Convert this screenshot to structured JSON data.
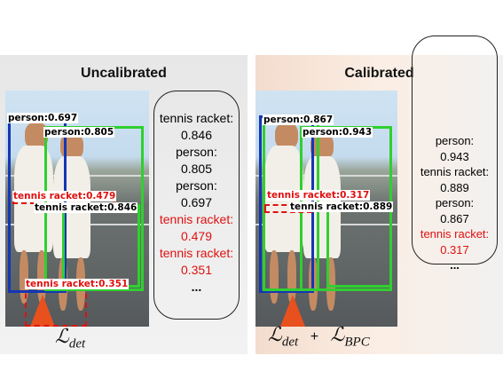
{
  "left_panel": {
    "title": "Uncalibrated",
    "detections": [
      {
        "label": "person:0.697",
        "color": "blue"
      },
      {
        "label": "person:0.805",
        "color": "green"
      },
      {
        "label": "tennis racket:0.479",
        "color": "red"
      },
      {
        "label": "tennis racket:0.846",
        "color": "green"
      },
      {
        "label": "tennis racket:0.351",
        "color": "red"
      }
    ],
    "scores": [
      "tennis racket:",
      "0.846",
      "person:",
      "0.805",
      "person:",
      "0.697",
      "tennis racket:",
      "0.479",
      "tennis racket:",
      "0.351",
      "..."
    ],
    "formula": {
      "main": "ℒ",
      "sub": "det"
    }
  },
  "right_panel": {
    "title": "Calibrated",
    "detections": [
      {
        "label": "person:0.867",
        "color": "blue"
      },
      {
        "label": "person:0.943",
        "color": "green"
      },
      {
        "label": "tennis racket:0.317",
        "color": "red"
      },
      {
        "label": "tennis racket:0.889",
        "color": "green"
      }
    ],
    "scores": [
      "person:",
      "0.943",
      "tennis racket:",
      "0.889",
      "person:",
      "0.867",
      "tennis racket:",
      "0.317",
      "..."
    ],
    "formula": {
      "main1": "ℒ",
      "sub1": "det",
      "plus": "+",
      "main2": "ℒ",
      "sub2": "BPC"
    }
  },
  "colors": {
    "blue": "#1436b5",
    "green": "#2fd02f",
    "red": "#e01010"
  }
}
